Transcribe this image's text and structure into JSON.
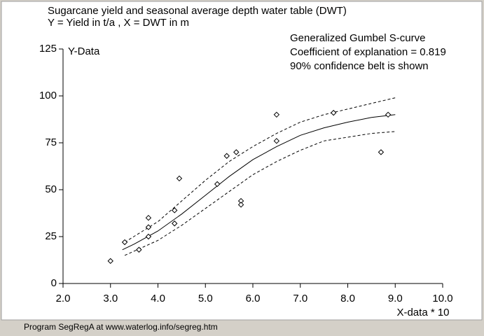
{
  "chart_data": {
    "type": "scatter",
    "title": "Sugarcane yield and seasonal average depth water table (DWT)",
    "subtitle": "Y = Yield in t/a , X = DWT in m",
    "annotations": [
      "Generalized Gumbel S-curve",
      "Coefficient of explanation = 0.819",
      "90% confidence belt is shown"
    ],
    "y_label": "Y-Data",
    "x_label": "X-data * 10",
    "x": [
      3.0,
      3.3,
      3.6,
      3.8,
      3.8,
      3.8,
      4.35,
      4.35,
      4.45,
      5.25,
      5.45,
      5.65,
      5.75,
      5.75,
      6.5,
      6.5,
      7.7,
      8.7,
      8.85
    ],
    "values": [
      12,
      22,
      18,
      35,
      30,
      25,
      39,
      32,
      56,
      53,
      68,
      70,
      44,
      42,
      90,
      76,
      91,
      70,
      90
    ],
    "color": "#000000",
    "lines": [
      {
        "style": "solid",
        "x": [
          3.25,
          3.5,
          4.0,
          4.5,
          5.0,
          5.5,
          6.0,
          6.5,
          7.0,
          7.5,
          8.0,
          8.5,
          9.0
        ],
        "values": [
          18,
          21,
          28,
          37,
          47,
          57,
          66,
          73,
          79,
          83,
          86,
          88.5,
          90
        ]
      },
      {
        "style": "dashed",
        "x": [
          3.3,
          4.0,
          4.5,
          5.0,
          5.5,
          6.0,
          6.5,
          7.0,
          7.5,
          8.0,
          8.5,
          9.0
        ],
        "values": [
          22,
          33,
          44,
          55,
          65,
          73,
          80,
          86,
          90,
          93,
          96,
          99
        ]
      },
      {
        "style": "dashed",
        "x": [
          3.3,
          4.0,
          4.5,
          5.0,
          5.5,
          6.0,
          6.5,
          7.0,
          7.5,
          8.0,
          8.5,
          9.0
        ],
        "values": [
          15,
          23,
          31,
          40,
          49,
          58,
          65,
          71,
          76,
          78,
          80,
          81
        ]
      }
    ],
    "xlim": [
      2,
      10
    ],
    "ylim": [
      0,
      125
    ],
    "xticks": [
      {
        "value": 2,
        "label": "2.0"
      },
      {
        "value": 3,
        "label": "3.0"
      },
      {
        "value": 4,
        "label": "4.0"
      },
      {
        "value": 5,
        "label": "5.0"
      },
      {
        "value": 6,
        "label": "6.0"
      },
      {
        "value": 7,
        "label": "7.0"
      },
      {
        "value": 8,
        "label": "8.0"
      },
      {
        "value": 9,
        "label": "9.0"
      },
      {
        "value": 10,
        "label": "10.0"
      }
    ],
    "yticks": [
      0,
      25,
      50,
      75,
      100,
      125
    ],
    "grid": false
  },
  "footer": "Program SegRegA at www.waterlog.info/segreg.htm"
}
